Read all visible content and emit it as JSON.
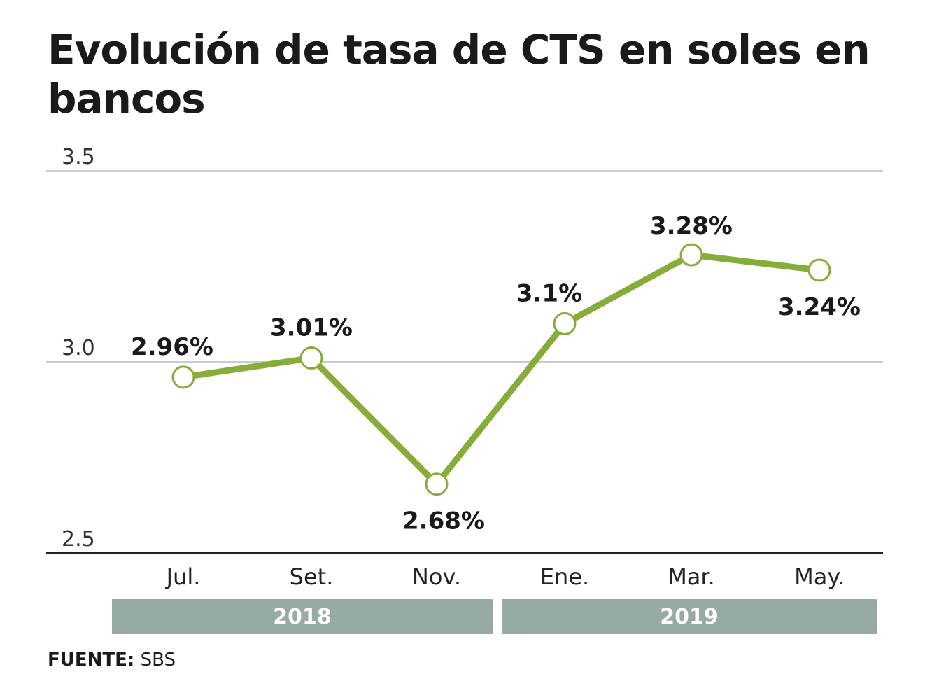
{
  "chart_data": {
    "type": "line",
    "title": "Evolución de tasa de CTS en soles en bancos",
    "categories": [
      "Jul.",
      "Set.",
      "Nov.",
      "Ene.",
      "Mar.",
      "May."
    ],
    "groups": [
      {
        "label": "2018",
        "categories": [
          "Jul.",
          "Set.",
          "Nov."
        ]
      },
      {
        "label": "2019",
        "categories": [
          "Ene.",
          "Mar.",
          "May."
        ]
      }
    ],
    "values": [
      2.96,
      3.01,
      2.68,
      3.1,
      3.28,
      3.24
    ],
    "data_labels": [
      "2.96%",
      "3.01%",
      "2.68%",
      "3.1%",
      "3.28%",
      "3.24%"
    ],
    "yticks": [
      "3.5",
      "3.0",
      "2.5"
    ],
    "ylim": [
      2.5,
      3.5
    ],
    "grid": true,
    "colors": {
      "line": "#86ad3a",
      "year_band": "#98aaa6"
    }
  },
  "source": {
    "label": "FUENTE:",
    "value": "SBS"
  }
}
